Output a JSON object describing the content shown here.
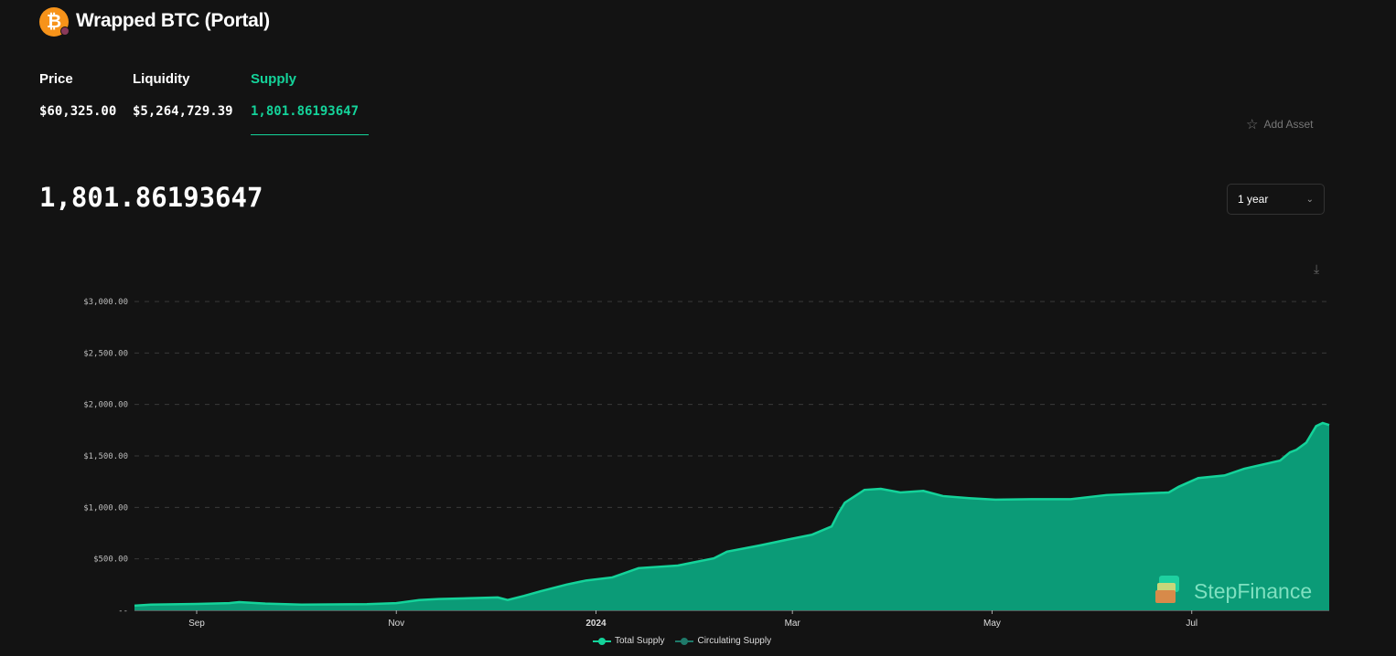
{
  "header": {
    "title": "Wrapped BTC (Portal)",
    "icon": "bitcoin-icon"
  },
  "stats": [
    {
      "label": "Price",
      "value": "$60,325.00"
    },
    {
      "label": "Liquidity",
      "value": "$5,264,729.39"
    },
    {
      "label": "Supply",
      "value": "1,801.86193647",
      "active": true
    }
  ],
  "add_asset": "Add Asset",
  "current_value": "1,801.86193647",
  "range_select": {
    "selected": "1 year"
  },
  "colors": {
    "accent": "#14d39a",
    "area": "#0b9b77",
    "background": "#131313"
  },
  "watermark": "StepFinance",
  "chart_data": {
    "type": "area",
    "ylim": [
      0,
      3000
    ],
    "yticks": [
      "--",
      "$500.00",
      "$1,000.00",
      "$1,500.00",
      "$2,000.00",
      "$2,500.00",
      "$3,000.00"
    ],
    "ytick_values": [
      0,
      500,
      1000,
      1500,
      2000,
      2500,
      3000
    ],
    "xticks": [
      {
        "label": "Sep",
        "date": "2023-09-01"
      },
      {
        "label": "Nov",
        "date": "2023-11-01"
      },
      {
        "label": "2024",
        "date": "2024-01-01",
        "bold": true
      },
      {
        "label": "Mar",
        "date": "2024-03-01"
      },
      {
        "label": "May",
        "date": "2024-05-01"
      },
      {
        "label": "Jul",
        "date": "2024-07-01"
      }
    ],
    "xlim": [
      "2023-08-13",
      "2024-08-12"
    ],
    "grid": true,
    "legend": {
      "placement": "bottom",
      "entries": [
        {
          "name": "Total Supply",
          "color": "#14d39a"
        },
        {
          "name": "Circulating Supply",
          "color": "#1f7a6a"
        }
      ]
    },
    "series": [
      {
        "name": "Total Supply",
        "points": [
          [
            "2023-08-13",
            45
          ],
          [
            "2023-08-18",
            55
          ],
          [
            "2023-09-01",
            62
          ],
          [
            "2023-09-11",
            70
          ],
          [
            "2023-09-14",
            80
          ],
          [
            "2023-09-22",
            65
          ],
          [
            "2023-10-03",
            55
          ],
          [
            "2023-10-23",
            60
          ],
          [
            "2023-11-01",
            70
          ],
          [
            "2023-11-08",
            100
          ],
          [
            "2023-11-14",
            110
          ],
          [
            "2023-12-02",
            125
          ],
          [
            "2023-12-05",
            100
          ],
          [
            "2023-12-10",
            140
          ],
          [
            "2023-12-15",
            185
          ],
          [
            "2023-12-23",
            250
          ],
          [
            "2023-12-29",
            290
          ],
          [
            "2024-01-06",
            320
          ],
          [
            "2024-01-14",
            410
          ],
          [
            "2024-01-26",
            435
          ],
          [
            "2024-02-06",
            505
          ],
          [
            "2024-02-10",
            570
          ],
          [
            "2024-02-20",
            630
          ],
          [
            "2024-02-29",
            690
          ],
          [
            "2024-03-07",
            735
          ],
          [
            "2024-03-13",
            815
          ],
          [
            "2024-03-15",
            940
          ],
          [
            "2024-03-17",
            1045
          ],
          [
            "2024-03-23",
            1170
          ],
          [
            "2024-03-28",
            1180
          ],
          [
            "2024-04-03",
            1145
          ],
          [
            "2024-04-10",
            1160
          ],
          [
            "2024-04-16",
            1110
          ],
          [
            "2024-04-24",
            1090
          ],
          [
            "2024-05-02",
            1075
          ],
          [
            "2024-05-13",
            1080
          ],
          [
            "2024-05-25",
            1080
          ],
          [
            "2024-06-05",
            1120
          ],
          [
            "2024-06-24",
            1145
          ],
          [
            "2024-06-27",
            1200
          ],
          [
            "2024-07-03",
            1285
          ],
          [
            "2024-07-11",
            1310
          ],
          [
            "2024-07-17",
            1375
          ],
          [
            "2024-07-28",
            1455
          ],
          [
            "2024-07-31",
            1535
          ],
          [
            "2024-08-02",
            1560
          ],
          [
            "2024-08-05",
            1630
          ],
          [
            "2024-08-08",
            1790
          ],
          [
            "2024-08-10",
            1820
          ],
          [
            "2024-08-12",
            1800
          ]
        ]
      }
    ]
  }
}
